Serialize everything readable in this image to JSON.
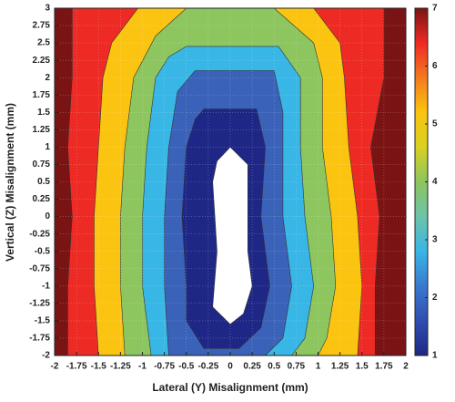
{
  "chart_data": {
    "type": "contour",
    "xlabel": "Lateral (Y) Misalignment (mm)",
    "ylabel": "Vertical (Z) Misalignment (mm)",
    "xlim": [
      -2,
      2
    ],
    "ylim": [
      -2,
      3
    ],
    "xticks": [
      -2,
      -1.75,
      -1.5,
      -1.25,
      -1,
      -0.75,
      -0.5,
      -0.25,
      0,
      0.25,
      0.5,
      0.75,
      1,
      1.25,
      1.5,
      1.75,
      2
    ],
    "yticks": [
      -2,
      -1.75,
      -1.5,
      -1.25,
      -1,
      -0.75,
      -0.5,
      -0.25,
      0,
      0.25,
      0.5,
      0.75,
      1,
      1.25,
      1.5,
      1.75,
      2,
      2.25,
      2.5,
      2.75,
      3
    ],
    "grid": true,
    "background_color": "#7a1414",
    "bands": [
      {
        "color": "#ee2a24",
        "x": [
          -1.8,
          1.75,
          1.75,
          1.6,
          1.7,
          1.65,
          1.65,
          -1.85,
          -1.85,
          -1.8,
          -1.85,
          -1.8
        ],
        "y": [
          3,
          3,
          2,
          1,
          0,
          -1,
          -2,
          -2,
          -1,
          0,
          1,
          2
        ]
      },
      {
        "color": "#fbc410",
        "x": [
          -1.05,
          0.95,
          1.25,
          1.3,
          1.35,
          1.45,
          1.5,
          1.45,
          -1.5,
          -1.55,
          -1.55,
          -1.5,
          -1.45,
          -1.35
        ],
        "y": [
          3,
          3,
          2.5,
          2,
          1,
          0,
          -1,
          -2,
          -2,
          -1,
          0,
          1,
          2,
          2.5
        ]
      },
      {
        "color": "#8dc55f",
        "x": [
          -0.5,
          0.5,
          0.95,
          1.05,
          1.05,
          1.15,
          1.2,
          1.1,
          1.0,
          -1.2,
          -1.25,
          -1.25,
          -1.2,
          -1.1,
          -0.85
        ],
        "y": [
          3,
          3,
          2.5,
          2,
          1,
          0,
          -1,
          -1.75,
          -2,
          -2,
          -1,
          0,
          1,
          2,
          2.6
        ]
      },
      {
        "color": "#38b6e6",
        "x": [
          -0.5,
          0.55,
          0.8,
          0.8,
          0.85,
          0.95,
          0.85,
          0.7,
          -0.9,
          -1,
          -1,
          -0.95,
          -0.85,
          -0.7
        ],
        "y": [
          2.45,
          2.45,
          2,
          1,
          0,
          -1,
          -1.75,
          -2,
          -2,
          -1,
          0,
          1,
          2,
          2.3
        ]
      },
      {
        "color": "#3a62b8",
        "x": [
          -0.4,
          0.5,
          0.6,
          0.6,
          0.7,
          0.6,
          0.4,
          -0.7,
          -0.75,
          -0.75,
          -0.7,
          -0.6
        ],
        "y": [
          2.1,
          2.1,
          1.5,
          0,
          -1,
          -1.75,
          -2,
          -2,
          -1,
          0,
          1,
          1.8
        ]
      },
      {
        "color": "#1e2785",
        "x": [
          -0.3,
          0.3,
          0.4,
          0.35,
          0.45,
          0.35,
          0.1,
          -0.3,
          -0.5,
          -0.5,
          -0.55,
          -0.5,
          -0.4
        ],
        "y": [
          1.55,
          1.55,
          1,
          0,
          -1,
          -1.6,
          -1.9,
          -1.9,
          -1.5,
          -1,
          0,
          1,
          1.4
        ]
      },
      {
        "color": "#ffffff",
        "x": [
          0,
          0.2,
          0.2,
          0.25,
          0.15,
          0,
          -0.2,
          -0.15,
          -0.2,
          -0.15
        ],
        "y": [
          1,
          0.75,
          -0.5,
          -1,
          -1.4,
          -1.55,
          -1.3,
          -0.5,
          0.5,
          0.8
        ]
      }
    ],
    "clim": [
      1,
      7
    ],
    "cticks": [
      1,
      2,
      3,
      4,
      5,
      6,
      7
    ],
    "colormap": [
      "#1e2785",
      "#2f4fb0",
      "#3a78d0",
      "#38b6e6",
      "#6cc4a8",
      "#8dc55f",
      "#d8d020",
      "#fbc410",
      "#f57a1c",
      "#ee2a24",
      "#7a1414"
    ]
  }
}
